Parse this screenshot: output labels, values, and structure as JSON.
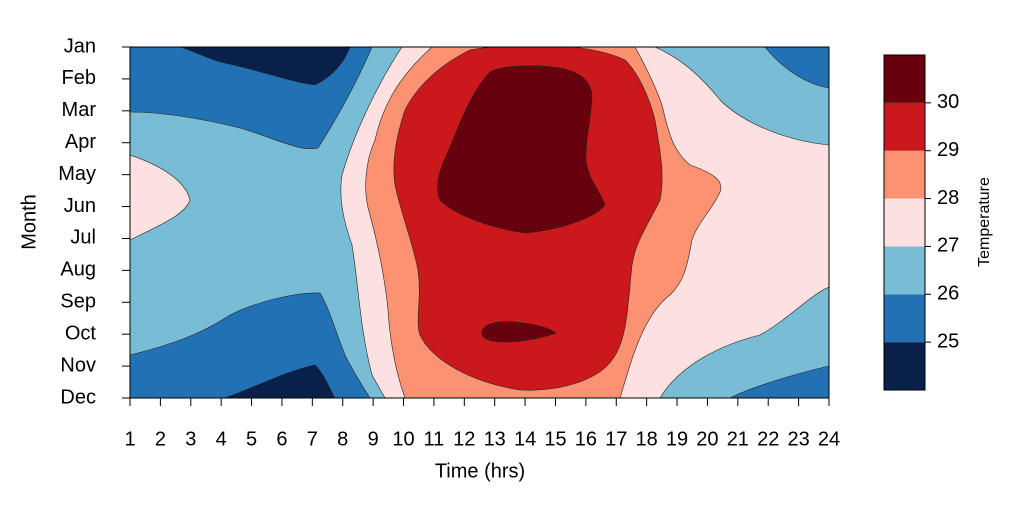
{
  "chart_data": {
    "type": "contour",
    "x_label": "Time (hrs)",
    "y_label": "Month",
    "categories": [
      "Jan",
      "Feb",
      "Mar",
      "Apr",
      "May",
      "Jun",
      "Jul",
      "Aug",
      "Sep",
      "Oct",
      "Nov",
      "Dec"
    ],
    "xlim": [
      1,
      24
    ],
    "xticks": [
      1,
      2,
      3,
      4,
      5,
      6,
      7,
      8,
      9,
      10,
      11,
      12,
      13,
      14,
      15,
      16,
      17,
      18,
      19,
      20,
      21,
      22,
      23,
      24
    ],
    "colorbar": {
      "label": "Temperature",
      "zlim": [
        24,
        31
      ],
      "zticks": [
        25,
        26,
        27,
        28,
        29,
        30
      ],
      "colors": [
        "#08204a",
        "#2271b5",
        "#79bcd5",
        "#fde0e0",
        "#fc9272",
        "#cb181d",
        "#67000d"
      ]
    }
  }
}
